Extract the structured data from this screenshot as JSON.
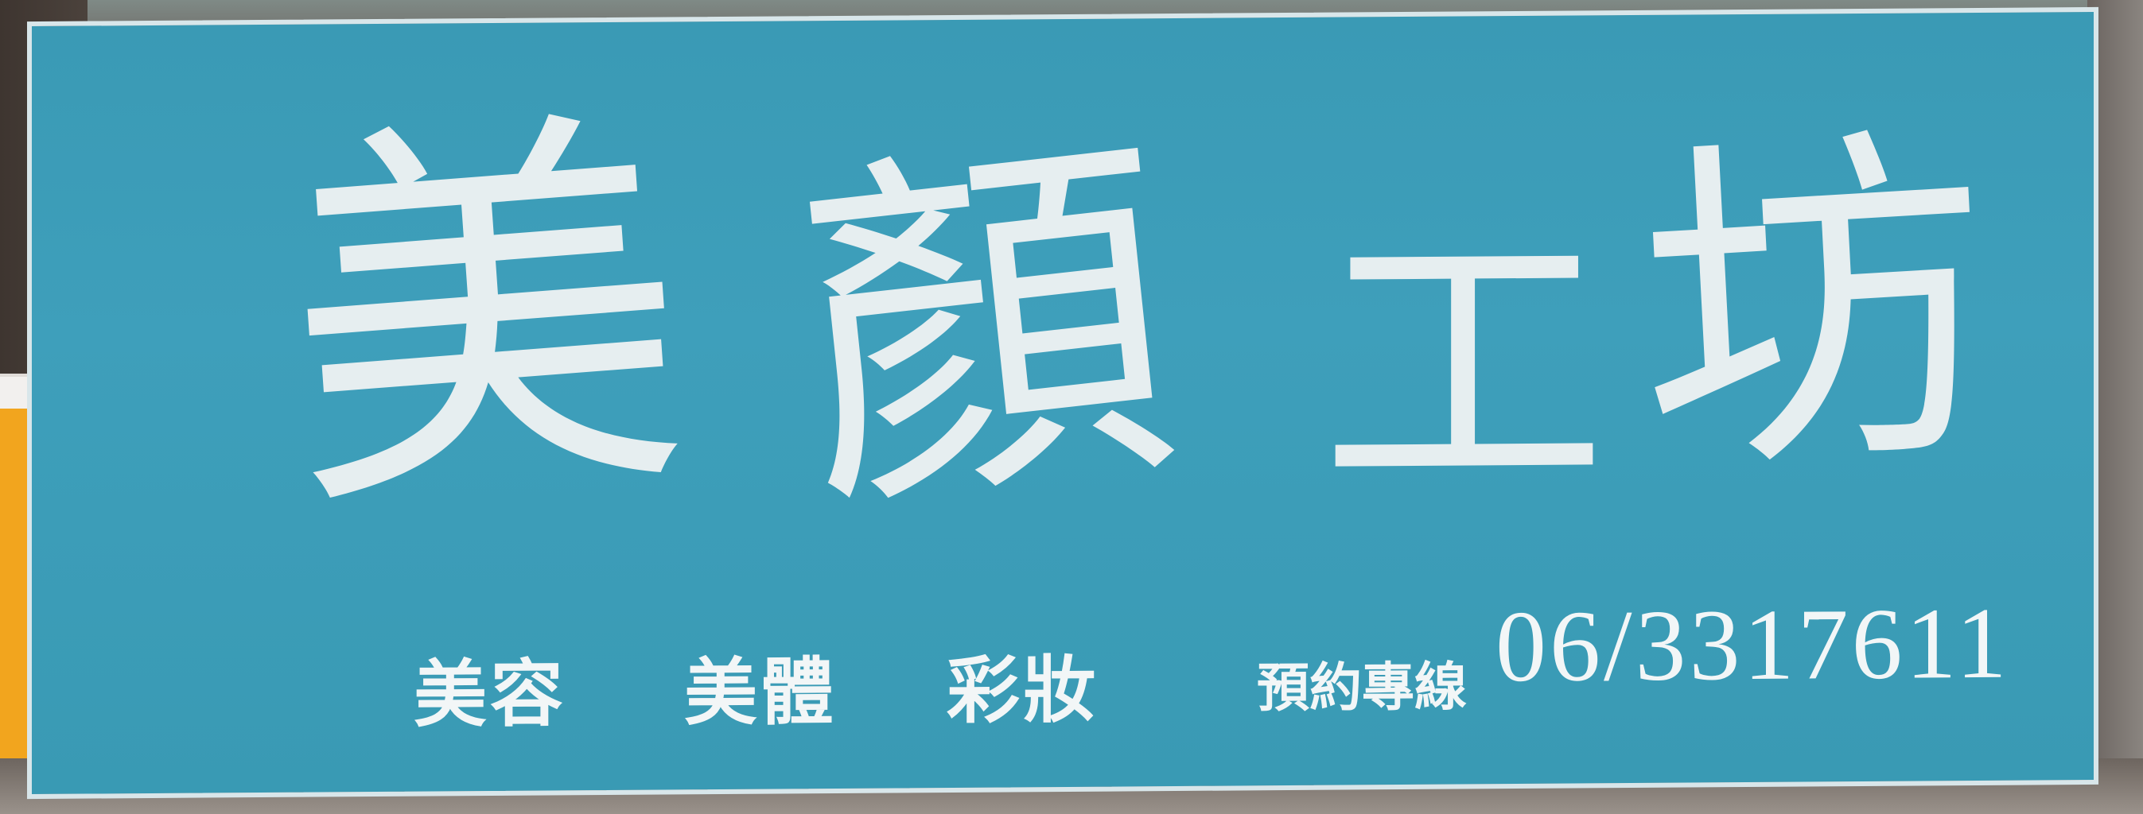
{
  "sign": {
    "title_chars": [
      "美",
      "顏",
      "工",
      "坊"
    ],
    "services": [
      "美容",
      "美體",
      "彩妝"
    ],
    "hotline_label": "預約專線",
    "hotline_number": "06/3317611",
    "colors": {
      "board": "#3e9fbb",
      "text": "#e6eef0",
      "border": "#d8e6ea"
    }
  }
}
